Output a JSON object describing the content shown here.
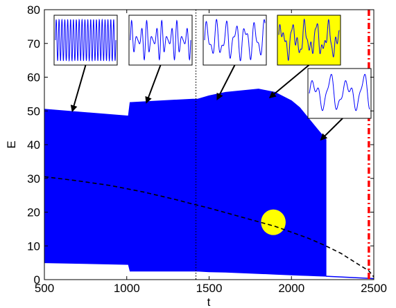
{
  "chart_data": {
    "type": "area",
    "xlabel": "t",
    "ylabel": "E",
    "xlim": [
      500,
      2500
    ],
    "ylim": [
      0,
      80
    ],
    "x_ticks": [
      "500",
      "1000",
      "1500",
      "2000",
      "2500"
    ],
    "y_ticks": [
      "0",
      "10",
      "20",
      "30",
      "40",
      "50",
      "60",
      "70",
      "80"
    ],
    "grid": false,
    "band": {
      "name": "",
      "color": "#0000ff",
      "segments": [
        {
          "x": [
            500,
            1010
          ],
          "upper": [
            50.5,
            48.5
          ],
          "lower": [
            5.0,
            4.5
          ]
        },
        {
          "x": [
            1010,
            1020,
            1400,
            1430
          ],
          "upper": [
            48.5,
            52.5,
            53.5,
            53.5
          ],
          "lower": [
            4.5,
            2.5,
            2.5,
            2.5
          ]
        },
        {
          "x": [
            1430,
            1500,
            1600,
            1700,
            1800,
            1900,
            2000,
            2050,
            2100,
            2150,
            2210
          ],
          "upper": [
            53.5,
            54.5,
            55.5,
            56.0,
            56.5,
            55.5,
            53.0,
            51.0,
            48.0,
            45.0,
            41.5
          ],
          "lower": [
            2.5,
            2.3,
            2.2,
            2.0,
            1.8,
            1.6,
            1.4,
            1.3,
            1.2,
            1.1,
            1.0
          ]
        }
      ],
      "tail": {
        "x": [
          2210,
          2500
        ],
        "y": [
          1.0,
          0.3
        ]
      }
    },
    "dashed_curve": {
      "color": "#000000",
      "x": [
        500,
        700,
        900,
        1100,
        1300,
        1400,
        1500,
        1700,
        1900,
        2100,
        2200,
        2300,
        2400,
        2470,
        2500
      ],
      "y": [
        30.5,
        29.3,
        27.9,
        26.0,
        23.7,
        22.4,
        21.2,
        18.5,
        15.8,
        12.3,
        10.2,
        7.8,
        4.7,
        2.6,
        0.8
      ]
    },
    "vertical_lines": [
      {
        "x": 1420,
        "color": "#000000",
        "style": "dotted"
      },
      {
        "x": 2470,
        "color": "#ff0000",
        "style": "dashdot"
      }
    ],
    "highlight_ellipse": {
      "cx": 1890,
      "cy": 17,
      "rx": 75,
      "ry": 3.8,
      "color": "#ffff00"
    },
    "insets": [
      {
        "name": "inset-1",
        "background": "#ffffff",
        "pattern": "dense",
        "points_to": [
          670,
          50
        ]
      },
      {
        "name": "inset-2",
        "background": "#ffffff",
        "pattern": "beat",
        "points_to": [
          1120,
          52.5
        ]
      },
      {
        "name": "inset-3",
        "background": "#ffffff",
        "pattern": "complex",
        "points_to": [
          1550,
          53.5
        ]
      },
      {
        "name": "inset-4",
        "background": "#ffff00",
        "pattern": "irregular",
        "points_to": [
          1870,
          54
        ]
      },
      {
        "name": "inset-5",
        "background": "#ffffff",
        "pattern": "sparse",
        "points_to": [
          2180,
          41.5
        ]
      }
    ]
  }
}
